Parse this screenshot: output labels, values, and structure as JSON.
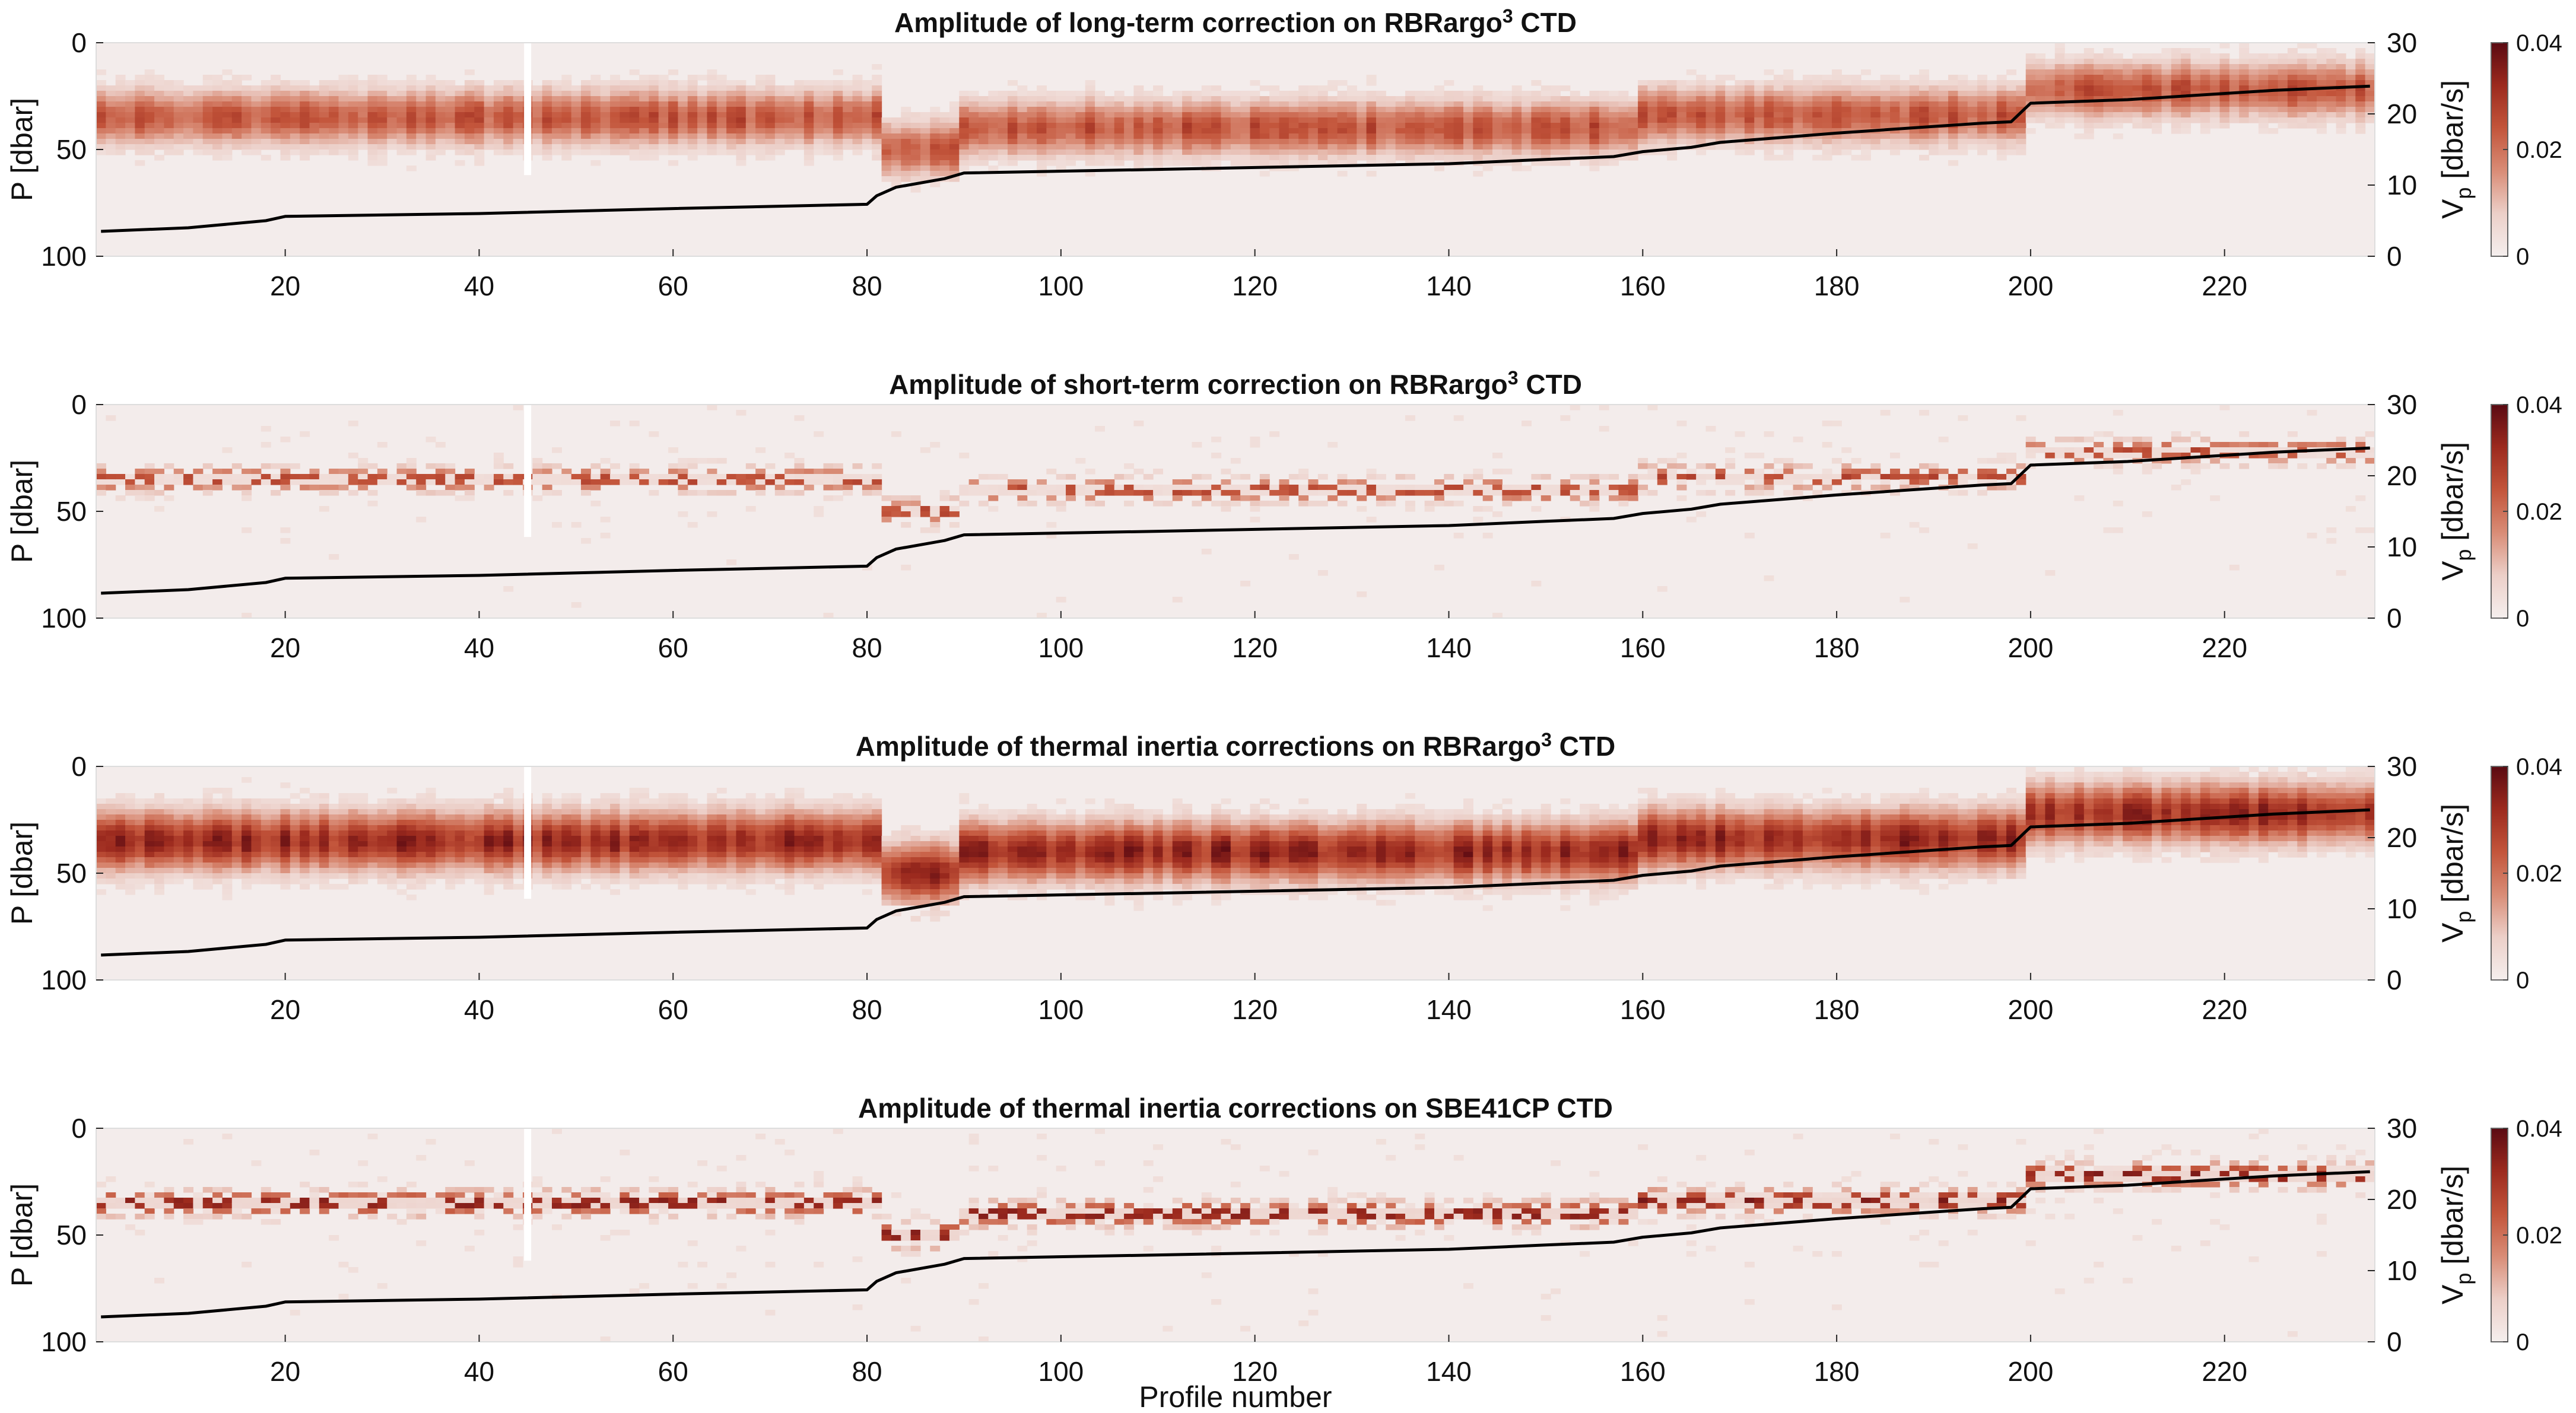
{
  "chart_data": [
    {
      "type": "heatmap",
      "title": "Amplitude of long-term correction on RBRargo",
      "title_sup": "3",
      "title_tail": " CTD",
      "ylabel_left": "P [dbar]",
      "ylabel_right": "V",
      "ylabel_right_sub": "p",
      "ylabel_right_tail": " [dbar/s]",
      "xlim": [
        1,
        235
      ],
      "ylim_left": [
        0,
        100
      ],
      "ylim_right": [
        0,
        30
      ],
      "xticks": [
        20,
        40,
        60,
        80,
        100,
        120,
        140,
        160,
        180,
        200,
        220
      ],
      "yticks_left": [
        0,
        50,
        100
      ],
      "yticks_right": [
        0,
        10,
        20,
        30
      ],
      "colorbar": {
        "range": [
          0,
          0.04
        ],
        "ticks": [
          "0",
          "0.02",
          "0.04"
        ]
      },
      "intensity": 0.55,
      "band_width": 12,
      "sparse": false,
      "line_series": {
        "x": [
          1,
          10,
          18,
          20,
          40,
          60,
          80,
          81,
          83,
          88,
          90,
          110,
          140,
          150,
          157,
          160,
          165,
          168,
          180,
          195,
          198,
          200,
          210,
          225,
          235
        ],
        "y": [
          3.5,
          4.0,
          5.0,
          5.6,
          6.0,
          6.7,
          7.3,
          8.5,
          9.7,
          10.9,
          11.7,
          12.2,
          13.0,
          13.6,
          14.0,
          14.7,
          15.3,
          16.0,
          17.3,
          18.7,
          18.9,
          21.5,
          22.0,
          23.3,
          23.9
        ]
      }
    },
    {
      "type": "heatmap",
      "title": "Amplitude of short-term correction on RBRargo",
      "title_sup": "3",
      "title_tail": " CTD",
      "ylabel_left": "P [dbar]",
      "ylabel_right": "V",
      "ylabel_right_sub": "p",
      "ylabel_right_tail": " [dbar/s]",
      "xlim": [
        1,
        235
      ],
      "ylim_left": [
        0,
        100
      ],
      "ylim_right": [
        0,
        30
      ],
      "xticks": [
        20,
        40,
        60,
        80,
        100,
        120,
        140,
        160,
        180,
        200,
        220
      ],
      "yticks_left": [
        0,
        50,
        100
      ],
      "yticks_right": [
        0,
        10,
        20,
        30
      ],
      "colorbar": {
        "range": [
          0,
          0.04
        ],
        "ticks": [
          "0",
          "0.02",
          "0.04"
        ]
      },
      "intensity": 0.45,
      "band_width": 5,
      "sparse": true,
      "line_series": {
        "x": [
          1,
          10,
          18,
          20,
          40,
          60,
          80,
          81,
          83,
          88,
          90,
          110,
          140,
          150,
          157,
          160,
          165,
          168,
          180,
          195,
          198,
          200,
          210,
          225,
          235
        ],
        "y": [
          3.5,
          4.0,
          5.0,
          5.6,
          6.0,
          6.7,
          7.3,
          8.5,
          9.7,
          10.9,
          11.7,
          12.2,
          13.0,
          13.6,
          14.0,
          14.7,
          15.3,
          16.0,
          17.3,
          18.7,
          18.9,
          21.5,
          22.0,
          23.3,
          23.9
        ]
      }
    },
    {
      "type": "heatmap",
      "title": "Amplitude of thermal inertia corrections on RBRargo",
      "title_sup": "3",
      "title_tail": " CTD",
      "ylabel_left": "P [dbar]",
      "ylabel_right": "V",
      "ylabel_right_sub": "p",
      "ylabel_right_tail": " [dbar/s]",
      "xlim": [
        1,
        235
      ],
      "ylim_left": [
        0,
        100
      ],
      "ylim_right": [
        0,
        30
      ],
      "xticks": [
        20,
        40,
        60,
        80,
        100,
        120,
        140,
        160,
        180,
        200,
        220
      ],
      "yticks_left": [
        0,
        50,
        100
      ],
      "yticks_right": [
        0,
        10,
        20,
        30
      ],
      "colorbar": {
        "range": [
          0,
          0.04
        ],
        "ticks": [
          "0",
          "0.02",
          "0.04"
        ]
      },
      "intensity": 0.75,
      "band_width": 13,
      "sparse": false,
      "line_series": {
        "x": [
          1,
          10,
          18,
          20,
          40,
          60,
          80,
          81,
          83,
          88,
          90,
          110,
          140,
          150,
          157,
          160,
          165,
          168,
          180,
          195,
          198,
          200,
          210,
          225,
          235
        ],
        "y": [
          3.5,
          4.0,
          5.0,
          5.6,
          6.0,
          6.7,
          7.3,
          8.5,
          9.7,
          10.9,
          11.7,
          12.2,
          13.0,
          13.6,
          14.0,
          14.7,
          15.3,
          16.0,
          17.3,
          18.7,
          18.9,
          21.5,
          22.0,
          23.3,
          23.9
        ]
      }
    },
    {
      "type": "heatmap",
      "title": "Amplitude of thermal inertia corrections on SBE41CP CTD",
      "title_sup": "",
      "title_tail": "",
      "ylabel_left": "P [dbar]",
      "ylabel_right": "V",
      "ylabel_right_sub": "p",
      "ylabel_right_tail": " [dbar/s]",
      "xlabel": "Profile number",
      "xlim": [
        1,
        235
      ],
      "ylim_left": [
        0,
        100
      ],
      "ylim_right": [
        0,
        30
      ],
      "xticks": [
        20,
        40,
        60,
        80,
        100,
        120,
        140,
        160,
        180,
        200,
        220
      ],
      "yticks_left": [
        0,
        50,
        100
      ],
      "yticks_right": [
        0,
        10,
        20,
        30
      ],
      "colorbar": {
        "range": [
          0,
          0.04
        ],
        "ticks": [
          "0",
          "0.02",
          "0.04"
        ]
      },
      "intensity": 0.6,
      "band_width": 5,
      "sparse": true,
      "line_series": {
        "x": [
          1,
          10,
          18,
          20,
          40,
          60,
          80,
          81,
          83,
          88,
          90,
          110,
          140,
          150,
          157,
          160,
          165,
          168,
          180,
          195,
          198,
          200,
          210,
          225,
          235
        ],
        "y": [
          3.5,
          4.0,
          5.0,
          5.6,
          6.0,
          6.7,
          7.3,
          8.5,
          9.7,
          10.9,
          11.7,
          12.2,
          13.0,
          13.6,
          14.0,
          14.7,
          15.3,
          16.0,
          17.3,
          18.7,
          18.9,
          21.5,
          22.0,
          23.3,
          23.9
        ]
      }
    }
  ],
  "colors": {
    "colormap": [
      "#f5efee",
      "#eccfc8",
      "#d98c76",
      "#c3553b",
      "#9c2a1e",
      "#5a0a12"
    ],
    "line": "#000000",
    "axis": "#262626"
  }
}
